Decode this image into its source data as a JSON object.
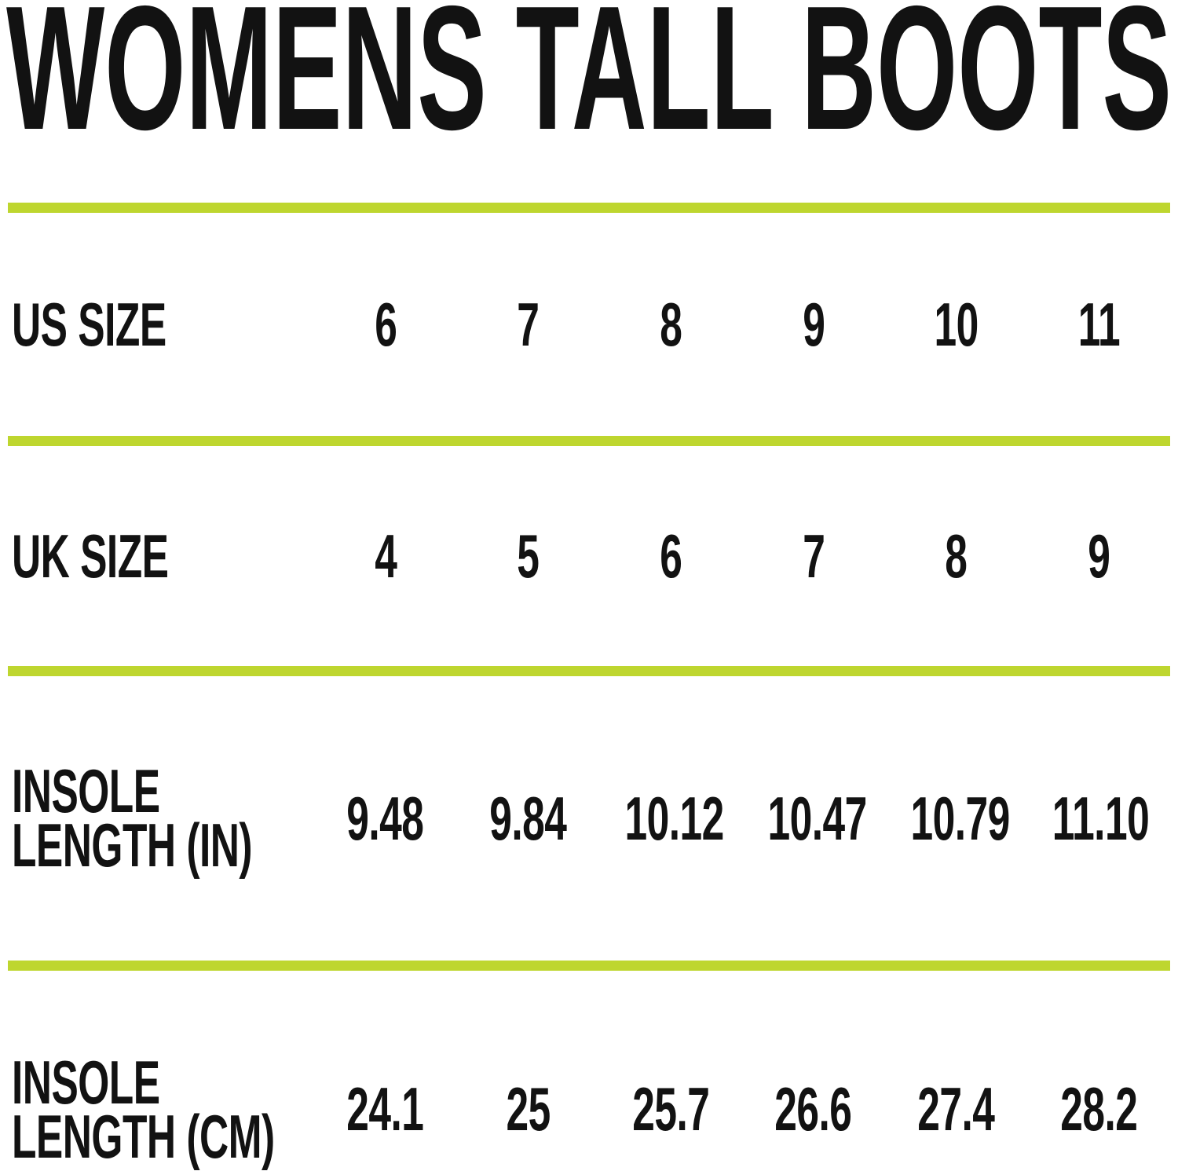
{
  "title": "WOMENS TALL BOOTS",
  "colors": {
    "accent": "#bed62f",
    "text": "#121212",
    "background": "#ffffff"
  },
  "chart_data": {
    "type": "table",
    "title": "WOMENS TALL BOOTS",
    "rows": [
      {
        "label": "US SIZE",
        "label_lines": [
          "US SIZE"
        ],
        "values": [
          "6",
          "7",
          "8",
          "9",
          "10",
          "11"
        ]
      },
      {
        "label": "UK SIZE",
        "label_lines": [
          "UK SIZE"
        ],
        "values": [
          "4",
          "5",
          "6",
          "7",
          "8",
          "9"
        ]
      },
      {
        "label": "INSOLE LENGTH (IN)",
        "label_lines": [
          "INSOLE",
          "LENGTH (IN)"
        ],
        "values": [
          "9.48",
          "9.84",
          "10.12",
          "10.47",
          "10.79",
          "11.10"
        ]
      },
      {
        "label": "INSOLE LENGTH (CM)",
        "label_lines": [
          "INSOLE",
          "LENGTH (CM)"
        ],
        "values": [
          "24.1",
          "25",
          "25.7",
          "26.6",
          "27.4",
          "28.2"
        ]
      }
    ]
  }
}
